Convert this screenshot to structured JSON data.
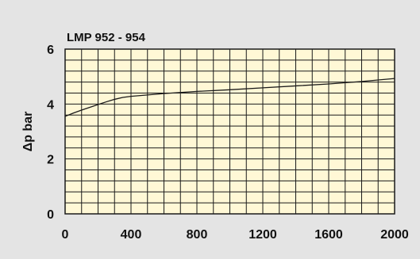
{
  "chart_data": {
    "type": "line",
    "title": "LMP 952 - 954",
    "xlabel": "",
    "ylabel": "Δp bar",
    "xlim": [
      0,
      2000
    ],
    "ylim": [
      0,
      6
    ],
    "xticks": [
      0,
      400,
      800,
      1200,
      1600,
      2000
    ],
    "yticks": [
      0,
      2,
      4,
      6
    ],
    "grid": true,
    "grid_minor_x_step": 100,
    "grid_minor_y_step": 0.4,
    "legend": "none",
    "colors": {
      "plot_background": "#fff8d6",
      "grid": "#1a1a1a",
      "line": "#1a1a1a",
      "outer_background": "#e4e4e4"
    },
    "series": [
      {
        "x": [
          0,
          50,
          100,
          150,
          200,
          250,
          300,
          350,
          400,
          500,
          600,
          700,
          800,
          1000,
          1200,
          1400,
          1600,
          1800,
          2000
        ],
        "y": [
          3.55,
          3.67,
          3.78,
          3.88,
          3.98,
          4.08,
          4.17,
          4.24,
          4.28,
          4.33,
          4.38,
          4.42,
          4.46,
          4.52,
          4.59,
          4.66,
          4.73,
          4.82,
          4.93
        ]
      }
    ]
  }
}
